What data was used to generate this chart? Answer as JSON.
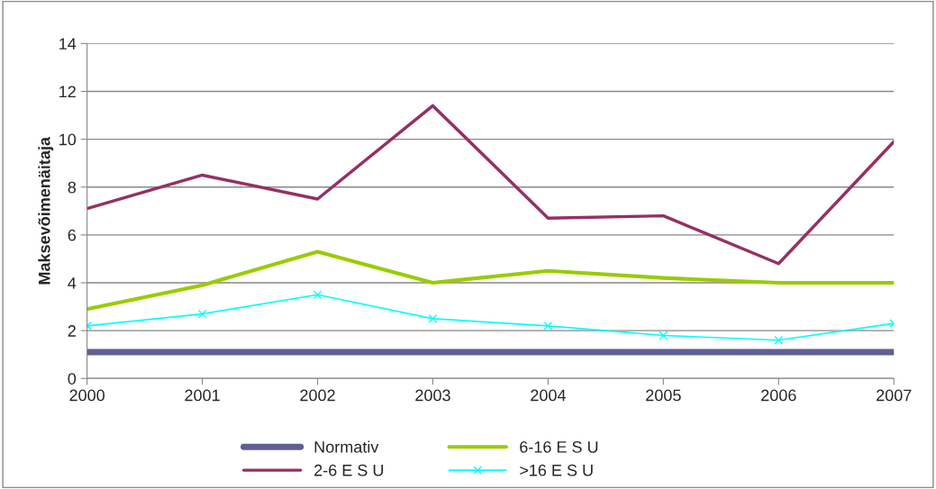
{
  "chart_data": {
    "type": "line",
    "ylabel": "Maksevõimenäitaja",
    "x": [
      2000,
      2001,
      2002,
      2003,
      2004,
      2005,
      2006,
      2007
    ],
    "xlim": [
      2000,
      2007
    ],
    "xticks": [
      2000,
      2001,
      2002,
      2003,
      2004,
      2005,
      2006,
      2007
    ],
    "ylim": [
      0,
      14
    ],
    "yticks": [
      0,
      2,
      4,
      6,
      8,
      10,
      12,
      14
    ],
    "grid": "y",
    "legend": "bottom",
    "series": [
      {
        "name": "Normativ",
        "color": "#5f5f93",
        "values": [
          1.1,
          1.1,
          1.1,
          1.1,
          1.1,
          1.1,
          1.1,
          1.1
        ]
      },
      {
        "name": "2-6 E S U",
        "color": "#953064",
        "values": [
          7.1,
          8.5,
          7.5,
          11.4,
          6.7,
          6.8,
          4.8,
          9.9
        ]
      },
      {
        "name": "6-16 E S U",
        "color": "#99cc00",
        "values": [
          2.9,
          3.9,
          5.3,
          4.0,
          4.5,
          4.2,
          4.0,
          4.0
        ]
      },
      {
        "name": ">16 E S U",
        "color": "#00ffff",
        "marker": "cross",
        "values": [
          2.2,
          2.7,
          3.5,
          2.5,
          2.2,
          1.8,
          1.6,
          2.3
        ]
      }
    ]
  }
}
